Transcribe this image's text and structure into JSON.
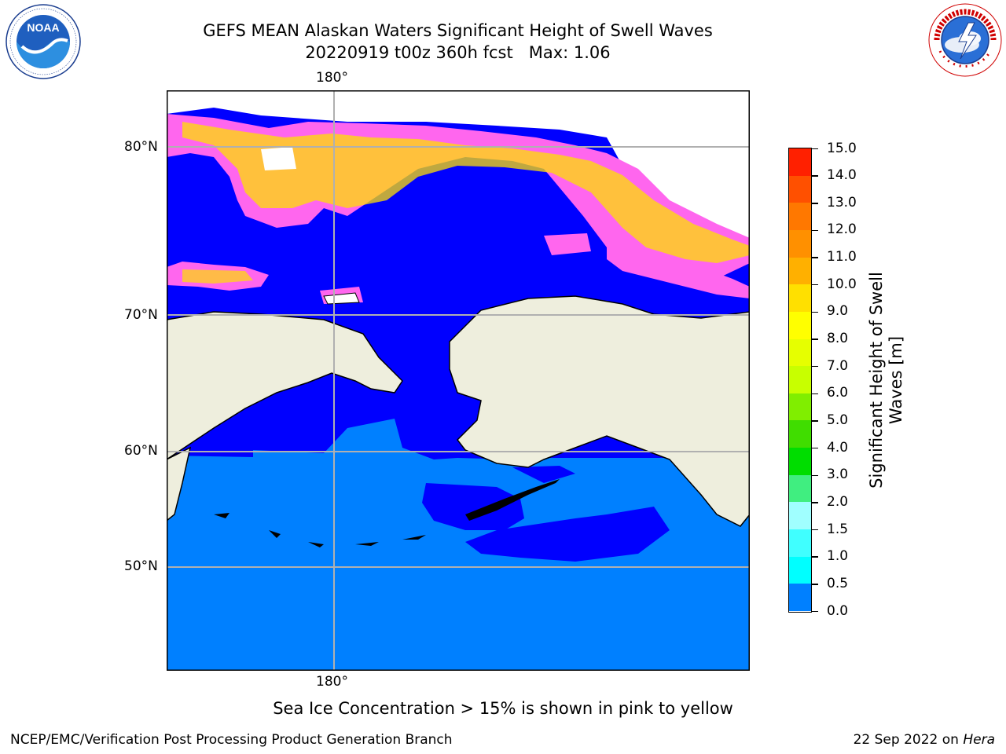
{
  "header": {
    "title_line1": "GEFS MEAN Alaskan Waters Significant Height of Swell Waves",
    "title_line2": "20220919 t00z 360h fcst   Max: 1.06"
  },
  "logos": {
    "left": {
      "name": "noaa-logo",
      "text": "NOAA",
      "ring_text": "NATIONAL OCEANIC AND ATMOSPHERIC ADMINISTRATION · U.S. DEPARTMENT OF COMMERCE"
    },
    "right": {
      "name": "nws-logo",
      "ring_text": "NATIONAL WEATHER SERVICE"
    }
  },
  "map": {
    "lon_labels": {
      "top": "180°",
      "bottom": "180°"
    },
    "lat_labels": [
      "80°N",
      "70°N",
      "60°N",
      "50°N"
    ],
    "colors": {
      "land": "#eeeedd",
      "ocean_low": "#0000ff",
      "ocean_mid": "#0080ff",
      "ice_pink": "#ff66ee",
      "ice_yellow": "#ffe000",
      "gridline": "#b0b0b0"
    }
  },
  "colorbar": {
    "title": "Significant Height of Swell Waves [m]",
    "title_lines": [
      "Significant Height of Swell",
      "Waves [m]"
    ],
    "tick_labels": [
      "15.0",
      "14.0",
      "13.0",
      "12.0",
      "11.0",
      "10.0",
      "9.0",
      "8.0",
      "7.0",
      "6.0",
      "5.0",
      "4.0",
      "3.0",
      "2.0",
      "1.5",
      "1.0",
      "0.5",
      "0.0"
    ],
    "colors_top_to_bottom": [
      "#ff0000",
      "#ff2000",
      "#ff5000",
      "#ff7800",
      "#ff9000",
      "#ffb000",
      "#ffe000",
      "#ffff00",
      "#e6ff00",
      "#c8ff00",
      "#80ee00",
      "#40dd00",
      "#00dd00",
      "#40ee80",
      "#a0ffff",
      "#40ffff",
      "#00ffff",
      "#0080ff",
      "#0000ff"
    ]
  },
  "caption": "Sea Ice Concentration > 15% is shown in pink to yellow",
  "footer": {
    "left": "NCEP/EMC/Verification Post Processing Product Generation Branch",
    "right_prefix": "22 Sep 2022 on ",
    "right_host": "Hera"
  }
}
